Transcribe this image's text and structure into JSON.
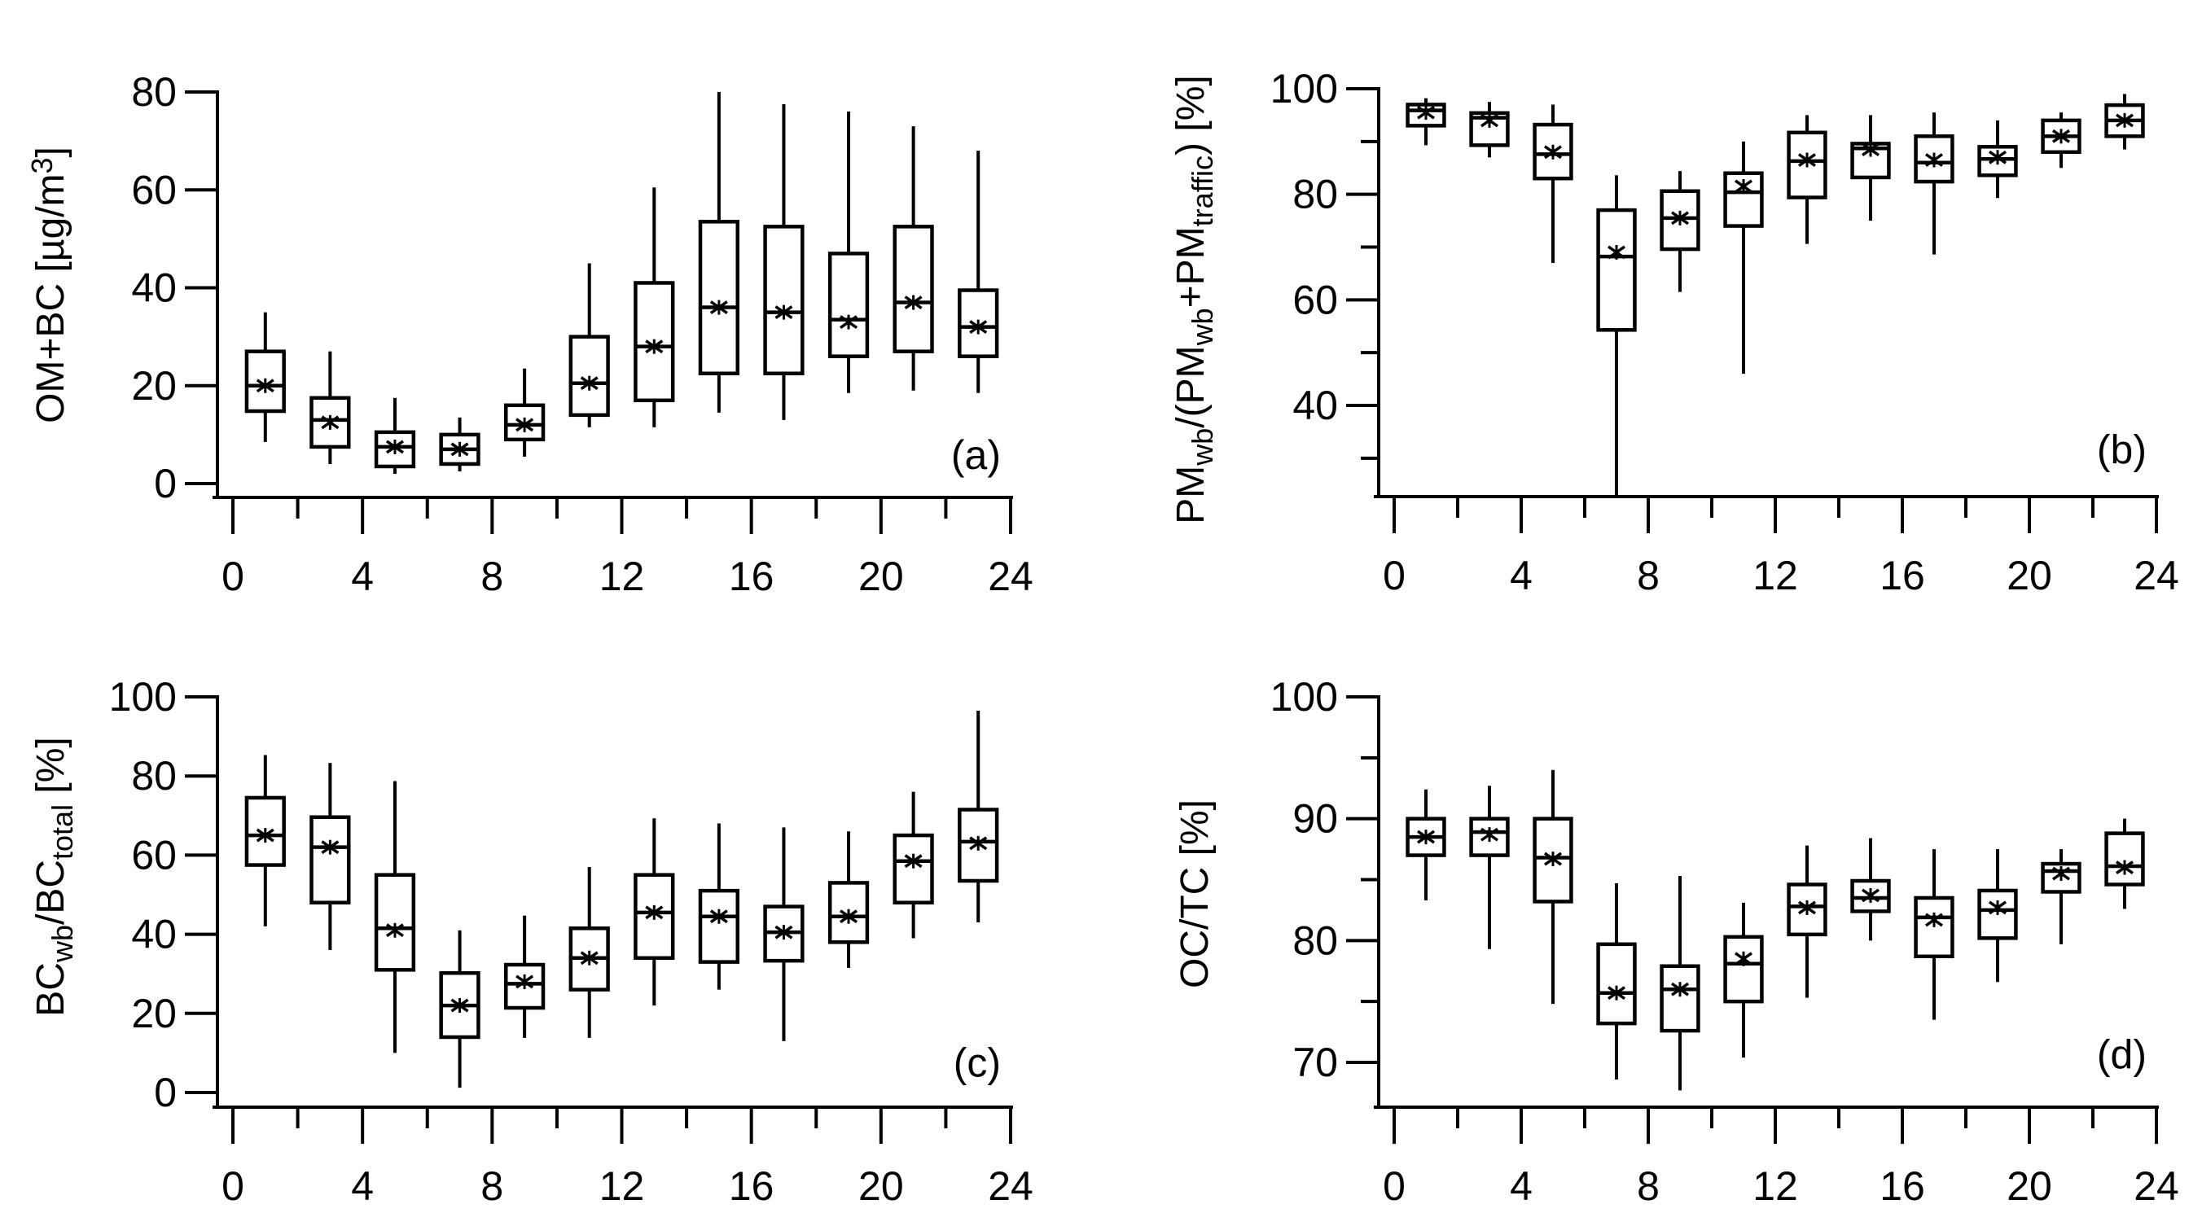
{
  "chart_data": [
    {
      "type": "box",
      "panel_label": "(a)",
      "ylabel_parts": [
        {
          "t": "OM+BC [µg/m"
        },
        {
          "t": "3",
          "sup": true
        },
        {
          "t": "]"
        }
      ],
      "xlim": [
        0,
        24
      ],
      "ylim": [
        -3,
        80
      ],
      "xticks": [
        "0",
        "4",
        "8",
        "12",
        "16",
        "20",
        "24"
      ],
      "yticks": [
        0,
        20,
        40,
        60,
        80
      ],
      "yminor": [],
      "x": [
        1,
        3,
        5,
        7,
        9,
        11,
        13,
        15,
        17,
        19,
        21,
        23
      ],
      "whisker_low": [
        8.5,
        4,
        2,
        2.5,
        5.5,
        11.5,
        11.5,
        14.5,
        13,
        18.5,
        19,
        18.5
      ],
      "q1": [
        14.8,
        7.5,
        3.5,
        4,
        9,
        14,
        17,
        22.5,
        22.5,
        26,
        27,
        26
      ],
      "median": [
        20,
        13,
        7.5,
        7,
        12,
        20.5,
        28,
        36,
        35,
        33.5,
        37,
        32
      ],
      "q3": [
        27,
        17.5,
        10.5,
        10,
        16,
        30,
        41,
        53.5,
        52.5,
        47,
        52.5,
        39.5
      ],
      "whisker_high": [
        35,
        27,
        17.5,
        13.5,
        23.5,
        45,
        60.5,
        80,
        77.5,
        76,
        73,
        68
      ],
      "mean": [
        20,
        12.5,
        7.5,
        7,
        12,
        20.5,
        28,
        36,
        35,
        33,
        37,
        32
      ]
    },
    {
      "type": "box",
      "panel_label": "(b)",
      "ylabel_parts": [
        {
          "t": "PM"
        },
        {
          "t": "wb",
          "sub": true
        },
        {
          "t": "/(PM"
        },
        {
          "t": "wb",
          "sub": true
        },
        {
          "t": "+PM"
        },
        {
          "t": "traffic",
          "sub": true
        },
        {
          "t": ") [%]"
        }
      ],
      "xlim": [
        0,
        24
      ],
      "ylim": [
        22,
        100
      ],
      "xticks": [
        "0",
        "4",
        "8",
        "12",
        "16",
        "20",
        "24"
      ],
      "yticks": [
        40,
        60,
        80,
        100
      ],
      "yminor": [
        30,
        50,
        70,
        90
      ],
      "x": [
        1,
        3,
        5,
        7,
        9,
        11,
        13,
        15,
        17,
        19,
        21,
        23
      ],
      "whisker_low": [
        89.3,
        87,
        67,
        23,
        61.5,
        46,
        70.6,
        75,
        68.6,
        79.3,
        85,
        88.5
      ],
      "q1": [
        93,
        89.3,
        83,
        54.3,
        69.6,
        74,
        79.4,
        83.2,
        82.4,
        83.6,
        88,
        91
      ],
      "median": [
        95.9,
        94.5,
        87.6,
        68.2,
        75.5,
        80.4,
        86.3,
        88.7,
        86,
        86.7,
        91,
        94
      ],
      "q3": [
        97,
        95.4,
        93.2,
        77,
        80.6,
        84,
        91.7,
        89.6,
        91,
        89,
        94,
        96.9
      ],
      "whisker_high": [
        98.2,
        97.5,
        97,
        83.6,
        84.4,
        90,
        95,
        95,
        95.5,
        94,
        95.5,
        99
      ],
      "mean": [
        95.5,
        94,
        88,
        69,
        75.5,
        81.5,
        86.5,
        88.5,
        86.5,
        87,
        91,
        94
      ]
    },
    {
      "type": "box",
      "panel_label": "(c)",
      "ylabel_parts": [
        {
          "t": "BC"
        },
        {
          "t": "wb",
          "sub": true
        },
        {
          "t": "/BC"
        },
        {
          "t": "total",
          "sub": true
        },
        {
          "t": " [%]"
        }
      ],
      "xlim": [
        0,
        24
      ],
      "ylim": [
        -3,
        100
      ],
      "xticks": [
        "0",
        "4",
        "8",
        "12",
        "16",
        "20",
        "24"
      ],
      "yticks": [
        0,
        20,
        40,
        60,
        80,
        100
      ],
      "yminor": [],
      "x": [
        1,
        3,
        5,
        7,
        9,
        11,
        13,
        15,
        17,
        19,
        21,
        23
      ],
      "whisker_low": [
        42,
        36,
        10,
        1.2,
        13.8,
        13.8,
        22,
        26,
        13,
        31.5,
        39,
        43
      ],
      "q1": [
        57.5,
        48,
        31,
        14,
        21.4,
        26,
        34,
        33,
        33.3,
        38,
        48,
        53.5
      ],
      "median": [
        65,
        62,
        41.5,
        22,
        27.5,
        34,
        45.5,
        44.5,
        40.5,
        44.5,
        58.5,
        63.4
      ],
      "q3": [
        74.5,
        69.6,
        55,
        30.2,
        32.3,
        41.5,
        55,
        51,
        47,
        53,
        65,
        71.5
      ],
      "whisker_high": [
        85.3,
        83.3,
        78.7,
        41,
        44.7,
        57,
        69.3,
        68,
        67,
        66,
        76,
        96.5
      ],
      "mean": [
        65,
        62,
        41,
        22,
        28,
        34,
        45.5,
        44.5,
        40.5,
        44.5,
        58.5,
        63
      ]
    },
    {
      "type": "box",
      "panel_label": "(d)",
      "ylabel_parts": [
        {
          "t": "OC/TC [%]"
        }
      ],
      "xlim": [
        0,
        24
      ],
      "ylim": [
        66.5,
        100
      ],
      "xticks": [
        "0",
        "4",
        "8",
        "12",
        "16",
        "20",
        "24"
      ],
      "yticks": [
        70,
        80,
        90,
        100
      ],
      "yminor": [
        75,
        85,
        95
      ],
      "x": [
        1,
        3,
        5,
        7,
        9,
        11,
        13,
        15,
        17,
        19,
        21,
        23
      ],
      "whisker_low": [
        83.3,
        79.3,
        74.8,
        68.6,
        67.7,
        70.4,
        75.3,
        80,
        73.5,
        76.6,
        79.7,
        82.6
      ],
      "q1": [
        87,
        87,
        83.2,
        73.2,
        72.6,
        75,
        80.5,
        82.4,
        78.7,
        80.2,
        84,
        84.6
      ],
      "median": [
        88.5,
        88.9,
        86.8,
        75.7,
        76,
        78.1,
        82.8,
        83.5,
        81.9,
        82.5,
        85.7,
        86.1
      ],
      "q3": [
        90,
        90,
        90,
        79.7,
        77.9,
        80.3,
        84.6,
        84.9,
        83.5,
        84.1,
        86.3,
        88.8
      ],
      "whisker_high": [
        92.4,
        92.7,
        94,
        84.7,
        85.3,
        83.1,
        87.8,
        88.4,
        87.5,
        87.5,
        87.5,
        90
      ],
      "mean": [
        88.5,
        88.7,
        86.7,
        75.7,
        76,
        78.5,
        82.7,
        83.7,
        81.7,
        82.7,
        85.5,
        86
      ]
    }
  ]
}
